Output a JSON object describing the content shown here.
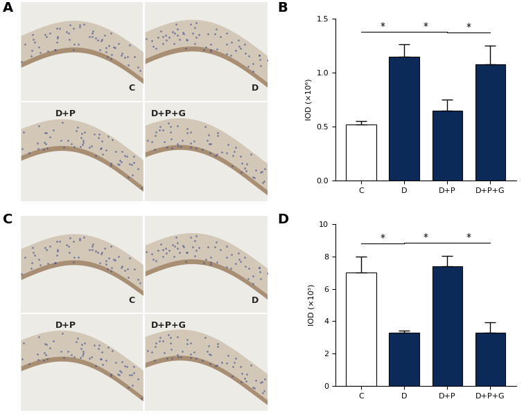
{
  "chart_data": [
    {
      "type": "image",
      "title": "A",
      "labels": [
        "C",
        "D",
        "D+P",
        "D+P+G"
      ]
    },
    {
      "type": "bar",
      "title": "B",
      "y_label": "IOD (×10⁶)",
      "categories": [
        "C",
        "D",
        "D+P",
        "D+P+G"
      ],
      "values": [
        0.52,
        1.15,
        0.65,
        1.08
      ],
      "error": [
        0.03,
        0.11,
        0.1,
        0.17
      ],
      "colors": [
        "#ffffff",
        "#0c2a57",
        "#0c2a57",
        "#0c2a57"
      ],
      "ylim": [
        0,
        1.5
      ],
      "yticks": [
        {
          "value": 0,
          "label": "0.0"
        },
        {
          "value": 0.5,
          "label": "0.5"
        },
        {
          "value": 1,
          "label": "1.0"
        },
        {
          "value": 1.5,
          "label": "1.5"
        }
      ],
      "annotations": [
        {
          "text": "*",
          "from": "C",
          "to": "D"
        },
        {
          "text": "*",
          "from": "D",
          "to": "D+P"
        },
        {
          "text": "*",
          "from": "D+P",
          "to": "D+P+G"
        }
      ]
    },
    {
      "type": "image",
      "title": "C",
      "labels": [
        "C",
        "D",
        "D+P",
        "D+P+G"
      ]
    },
    {
      "type": "bar",
      "title": "D",
      "y_label": "IOD (×10⁵)",
      "categories": [
        "C",
        "D",
        "D+P",
        "D+P+G"
      ],
      "values": [
        7.0,
        3.3,
        7.4,
        3.3
      ],
      "error": [
        1.0,
        0.1,
        0.65,
        0.65
      ],
      "colors": [
        "#ffffff",
        "#0c2a57",
        "#0c2a57",
        "#0c2a57"
      ],
      "ylim": [
        0,
        10
      ],
      "yticks": [
        0,
        2,
        4,
        6,
        8,
        10
      ],
      "annotations": [
        {
          "text": "*",
          "from": "C",
          "to": "D"
        },
        {
          "text": "*",
          "from": "D",
          "to": "D+P"
        },
        {
          "text": "*",
          "from": "D+P",
          "to": "D+P+G"
        }
      ]
    }
  ]
}
